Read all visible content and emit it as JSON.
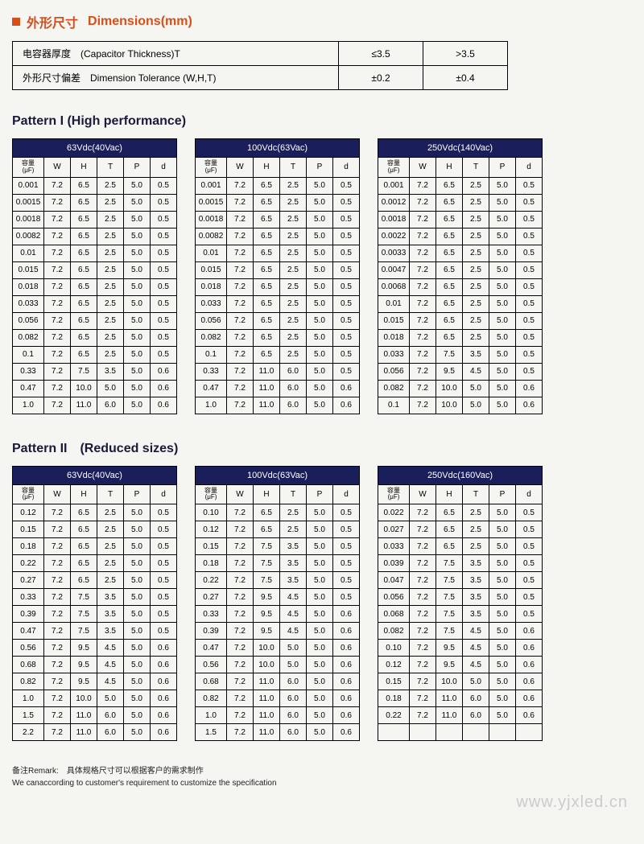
{
  "header": {
    "title_cn": "外形尺寸",
    "title_en": "Dimensions(mm)"
  },
  "tolerance": {
    "rows": [
      {
        "label": "电容器厚度　(Capacitor  Thickness)T",
        "v1": "≤3.5",
        "v2": ">3.5"
      },
      {
        "label": "外形尺寸偏差　Dimension Tolerance  (W,H,T)",
        "v1": "±0.2",
        "v2": "±0.4"
      }
    ]
  },
  "pattern1_title": "Pattern I (High performance)",
  "pattern2_title": "Pattern II　(Reduced sizes)",
  "col_headers": {
    "cap": "容量",
    "cap_unit": "(μF)",
    "W": "W",
    "H": "H",
    "T": "T",
    "P": "P",
    "d": "d"
  },
  "pattern1": [
    {
      "voltage": "63Vdc(40Vac)",
      "rows": [
        [
          "0.001",
          "7.2",
          "6.5",
          "2.5",
          "5.0",
          "0.5"
        ],
        [
          "0.0015",
          "7.2",
          "6.5",
          "2.5",
          "5.0",
          "0.5"
        ],
        [
          "0.0018",
          "7.2",
          "6.5",
          "2.5",
          "5.0",
          "0.5"
        ],
        [
          "0.0082",
          "7.2",
          "6.5",
          "2.5",
          "5.0",
          "0.5"
        ],
        [
          "0.01",
          "7.2",
          "6.5",
          "2.5",
          "5.0",
          "0.5"
        ],
        [
          "0.015",
          "7.2",
          "6.5",
          "2.5",
          "5.0",
          "0.5"
        ],
        [
          "0.018",
          "7.2",
          "6.5",
          "2.5",
          "5.0",
          "0.5"
        ],
        [
          "0.033",
          "7.2",
          "6.5",
          "2.5",
          "5.0",
          "0.5"
        ],
        [
          "0.056",
          "7.2",
          "6.5",
          "2.5",
          "5.0",
          "0.5"
        ],
        [
          "0.082",
          "7.2",
          "6.5",
          "2.5",
          "5.0",
          "0.5"
        ],
        [
          "0.1",
          "7.2",
          "6.5",
          "2.5",
          "5.0",
          "0.5"
        ],
        [
          "0.33",
          "7.2",
          "7.5",
          "3.5",
          "5.0",
          "0.6"
        ],
        [
          "0.47",
          "7.2",
          "10.0",
          "5.0",
          "5.0",
          "0.6"
        ],
        [
          "1.0",
          "7.2",
          "11.0",
          "6.0",
          "5.0",
          "0.6"
        ]
      ]
    },
    {
      "voltage": "100Vdc(63Vac)",
      "rows": [
        [
          "0.001",
          "7.2",
          "6.5",
          "2.5",
          "5.0",
          "0.5"
        ],
        [
          "0.0015",
          "7.2",
          "6.5",
          "2.5",
          "5.0",
          "0.5"
        ],
        [
          "0.0018",
          "7.2",
          "6.5",
          "2.5",
          "5.0",
          "0.5"
        ],
        [
          "0.0082",
          "7.2",
          "6.5",
          "2.5",
          "5.0",
          "0.5"
        ],
        [
          "0.01",
          "7.2",
          "6.5",
          "2.5",
          "5.0",
          "0.5"
        ],
        [
          "0.015",
          "7.2",
          "6.5",
          "2.5",
          "5.0",
          "0.5"
        ],
        [
          "0.018",
          "7.2",
          "6.5",
          "2.5",
          "5.0",
          "0.5"
        ],
        [
          "0.033",
          "7.2",
          "6.5",
          "2.5",
          "5.0",
          "0.5"
        ],
        [
          "0.056",
          "7.2",
          "6.5",
          "2.5",
          "5.0",
          "0.5"
        ],
        [
          "0.082",
          "7.2",
          "6.5",
          "2.5",
          "5.0",
          "0.5"
        ],
        [
          "0.1",
          "7.2",
          "6.5",
          "2.5",
          "5.0",
          "0.5"
        ],
        [
          "0.33",
          "7.2",
          "11.0",
          "6.0",
          "5.0",
          "0.5"
        ],
        [
          "0.47",
          "7.2",
          "11.0",
          "6.0",
          "5.0",
          "0.6"
        ],
        [
          "1.0",
          "7.2",
          "11.0",
          "6.0",
          "5.0",
          "0.6"
        ]
      ]
    },
    {
      "voltage": "250Vdc(140Vac)",
      "w_header": "W",
      "rows": [
        [
          "0.001",
          "7.2",
          "6.5",
          "2.5",
          "5.0",
          "0.5"
        ],
        [
          "0.0012",
          "7.2",
          "6.5",
          "2.5",
          "5.0",
          "0.5"
        ],
        [
          "0.0018",
          "7.2",
          "6.5",
          "2.5",
          "5.0",
          "0.5"
        ],
        [
          "0.0022",
          "7.2",
          "6.5",
          "2.5",
          "5.0",
          "0.5"
        ],
        [
          "0.0033",
          "7.2",
          "6.5",
          "2.5",
          "5.0",
          "0.5"
        ],
        [
          "0.0047",
          "7.2",
          "6.5",
          "2.5",
          "5.0",
          "0.5"
        ],
        [
          "0.0068",
          "7.2",
          "6.5",
          "2.5",
          "5.0",
          "0.5"
        ],
        [
          "0.01",
          "7.2",
          "6.5",
          "2.5",
          "5.0",
          "0.5"
        ],
        [
          "0.015",
          "7.2",
          "6.5",
          "2.5",
          "5.0",
          "0.5"
        ],
        [
          "0.018",
          "7.2",
          "6.5",
          "2.5",
          "5.0",
          "0.5"
        ],
        [
          "0.033",
          "7.2",
          "7.5",
          "3.5",
          "5.0",
          "0.5"
        ],
        [
          "0.056",
          "7.2",
          "9.5",
          "4.5",
          "5.0",
          "0.5"
        ],
        [
          "0.082",
          "7.2",
          "10.0",
          "5.0",
          "5.0",
          "0.6"
        ],
        [
          "0.1",
          "7.2",
          "10.0",
          "5.0",
          "5.0",
          "0.6"
        ]
      ]
    }
  ],
  "pattern2": [
    {
      "voltage": "63Vdc(40Vac)",
      "rows": [
        [
          "0.12",
          "7.2",
          "6.5",
          "2.5",
          "5.0",
          "0.5"
        ],
        [
          "0.15",
          "7.2",
          "6.5",
          "2.5",
          "5.0",
          "0.5"
        ],
        [
          "0.18",
          "7.2",
          "6.5",
          "2.5",
          "5.0",
          "0.5"
        ],
        [
          "0.22",
          "7.2",
          "6.5",
          "2.5",
          "5.0",
          "0.5"
        ],
        [
          "0.27",
          "7.2",
          "6.5",
          "2.5",
          "5.0",
          "0.5"
        ],
        [
          "0.33",
          "7.2",
          "7.5",
          "3.5",
          "5.0",
          "0.5"
        ],
        [
          "0.39",
          "7.2",
          "7.5",
          "3.5",
          "5.0",
          "0.5"
        ],
        [
          "0.47",
          "7.2",
          "7.5",
          "3.5",
          "5.0",
          "0.5"
        ],
        [
          "0.56",
          "7.2",
          "9.5",
          "4.5",
          "5.0",
          "0.6"
        ],
        [
          "0.68",
          "7.2",
          "9.5",
          "4.5",
          "5.0",
          "0.6"
        ],
        [
          "0.82",
          "7.2",
          "9.5",
          "4.5",
          "5.0",
          "0.6"
        ],
        [
          "1.0",
          "7.2",
          "10.0",
          "5.0",
          "5.0",
          "0.6"
        ],
        [
          "1.5",
          "7.2",
          "11.0",
          "6.0",
          "5.0",
          "0.6"
        ],
        [
          "2.2",
          "7.2",
          "11.0",
          "6.0",
          "5.0",
          "0.6"
        ]
      ]
    },
    {
      "voltage": "100Vdc(63Vac)",
      "rows": [
        [
          "0.10",
          "7.2",
          "6.5",
          "2.5",
          "5.0",
          "0.5"
        ],
        [
          "0.12",
          "7.2",
          "6.5",
          "2.5",
          "5.0",
          "0.5"
        ],
        [
          "0.15",
          "7.2",
          "7.5",
          "3.5",
          "5.0",
          "0.5"
        ],
        [
          "0.18",
          "7.2",
          "7.5",
          "3.5",
          "5.0",
          "0.5"
        ],
        [
          "0.22",
          "7.2",
          "7.5",
          "3.5",
          "5.0",
          "0.5"
        ],
        [
          "0.27",
          "7.2",
          "9.5",
          "4.5",
          "5.0",
          "0.5"
        ],
        [
          "0.33",
          "7.2",
          "9.5",
          "4.5",
          "5.0",
          "0.6"
        ],
        [
          "0.39",
          "7.2",
          "9.5",
          "4.5",
          "5.0",
          "0.6"
        ],
        [
          "0.47",
          "7.2",
          "10.0",
          "5.0",
          "5.0",
          "0.6"
        ],
        [
          "0.56",
          "7.2",
          "10.0",
          "5.0",
          "5.0",
          "0.6"
        ],
        [
          "0.68",
          "7.2",
          "11.0",
          "6.0",
          "5.0",
          "0.6"
        ],
        [
          "0.82",
          "7.2",
          "11.0",
          "6.0",
          "5.0",
          "0.6"
        ],
        [
          "1.0",
          "7.2",
          "11.0",
          "6.0",
          "5.0",
          "0.6"
        ],
        [
          "1.5",
          "7.2",
          "11.0",
          "6.0",
          "5.0",
          "0.6"
        ]
      ]
    },
    {
      "voltage": "250Vdc(160Vac)",
      "rows": [
        [
          "0.022",
          "7.2",
          "6.5",
          "2.5",
          "5.0",
          "0.5"
        ],
        [
          "0.027",
          "7.2",
          "6.5",
          "2.5",
          "5.0",
          "0.5"
        ],
        [
          "0.033",
          "7.2",
          "6.5",
          "2.5",
          "5.0",
          "0.5"
        ],
        [
          "0.039",
          "7.2",
          "7.5",
          "3.5",
          "5.0",
          "0.5"
        ],
        [
          "0.047",
          "7.2",
          "7.5",
          "3.5",
          "5.0",
          "0.5"
        ],
        [
          "0.056",
          "7.2",
          "7.5",
          "3.5",
          "5.0",
          "0.5"
        ],
        [
          "0.068",
          "7.2",
          "7.5",
          "3.5",
          "5.0",
          "0.5"
        ],
        [
          "0.082",
          "7.2",
          "7.5",
          "4.5",
          "5.0",
          "0.6"
        ],
        [
          "0.10",
          "7.2",
          "9.5",
          "4.5",
          "5.0",
          "0.6"
        ],
        [
          "0.12",
          "7.2",
          "9.5",
          "4.5",
          "5.0",
          "0.6"
        ],
        [
          "0.15",
          "7.2",
          "10.0",
          "5.0",
          "5.0",
          "0.6"
        ],
        [
          "0.18",
          "7.2",
          "11.0",
          "6.0",
          "5.0",
          "0.6"
        ],
        [
          "0.22",
          "7.2",
          "11.0",
          "6.0",
          "5.0",
          "0.6"
        ],
        [
          "",
          "",
          "",
          "",
          "",
          ""
        ]
      ]
    }
  ],
  "remark_cn": "备注Remark:　具体规格尺寸可以根据客户的需求制作",
  "remark_en": "We canaccording to customer's requirement to customize the specification",
  "watermark": "www.yjxled.cn"
}
